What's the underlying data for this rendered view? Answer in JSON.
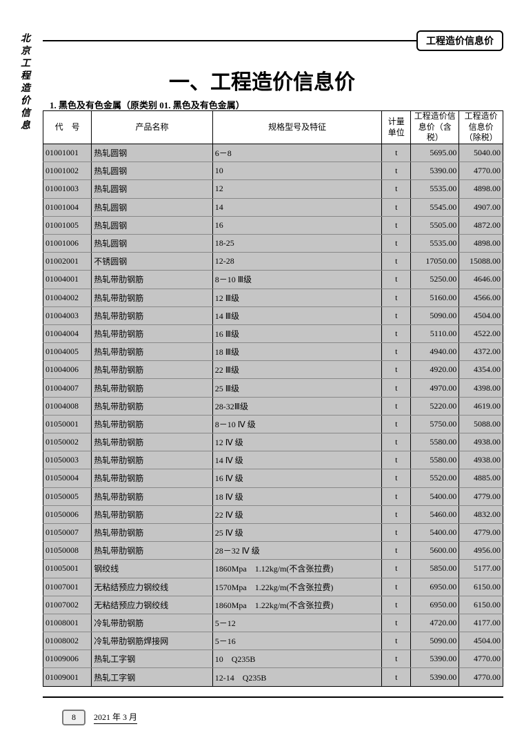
{
  "vertTitle": "北京工程造价信息",
  "headerTag": "工程造价信息价",
  "mainTitle": "一、工程造价信息价",
  "subTitle": "1. 黑色及有色金属（原类别 01. 黑色及有色金属）",
  "pageNumber": "8",
  "footerDate": "2021 年 3 月",
  "columns": {
    "code": "代　号",
    "name": "产品名称",
    "spec": "规格型号及特征",
    "unit": "计量单位",
    "p1": "工程造价信息价（含税）",
    "p2": "工程造价信息价（除税）"
  },
  "rows": [
    {
      "code": "01001001",
      "name": "热轧圆钢",
      "spec": "6－8",
      "unit": "t",
      "p1": "5695.00",
      "p2": "5040.00"
    },
    {
      "code": "01001002",
      "name": "热轧圆钢",
      "spec": "10",
      "unit": "t",
      "p1": "5390.00",
      "p2": "4770.00"
    },
    {
      "code": "01001003",
      "name": "热轧圆钢",
      "spec": "12",
      "unit": "t",
      "p1": "5535.00",
      "p2": "4898.00"
    },
    {
      "code": "01001004",
      "name": "热轧圆钢",
      "spec": "14",
      "unit": "t",
      "p1": "5545.00",
      "p2": "4907.00"
    },
    {
      "code": "01001005",
      "name": "热轧圆钢",
      "spec": "16",
      "unit": "t",
      "p1": "5505.00",
      "p2": "4872.00"
    },
    {
      "code": "01001006",
      "name": "热轧圆钢",
      "spec": "18-25",
      "unit": "t",
      "p1": "5535.00",
      "p2": "4898.00"
    },
    {
      "code": "01002001",
      "name": "不锈圆钢",
      "spec": "12-28",
      "unit": "t",
      "p1": "17050.00",
      "p2": "15088.00"
    },
    {
      "code": "01004001",
      "name": "热轧带肋钢筋",
      "spec": "8－10 Ⅲ级",
      "unit": "t",
      "p1": "5250.00",
      "p2": "4646.00"
    },
    {
      "code": "01004002",
      "name": "热轧带肋钢筋",
      "spec": "12 Ⅲ级",
      "unit": "t",
      "p1": "5160.00",
      "p2": "4566.00"
    },
    {
      "code": "01004003",
      "name": "热轧带肋钢筋",
      "spec": "14 Ⅲ级",
      "unit": "t",
      "p1": "5090.00",
      "p2": "4504.00"
    },
    {
      "code": "01004004",
      "name": "热轧带肋钢筋",
      "spec": "16 Ⅲ级",
      "unit": "t",
      "p1": "5110.00",
      "p2": "4522.00"
    },
    {
      "code": "01004005",
      "name": "热轧带肋钢筋",
      "spec": "18 Ⅲ级",
      "unit": "t",
      "p1": "4940.00",
      "p2": "4372.00"
    },
    {
      "code": "01004006",
      "name": "热轧带肋钢筋",
      "spec": "22 Ⅲ级",
      "unit": "t",
      "p1": "4920.00",
      "p2": "4354.00"
    },
    {
      "code": "01004007",
      "name": "热轧带肋钢筋",
      "spec": "25 Ⅲ级",
      "unit": "t",
      "p1": "4970.00",
      "p2": "4398.00"
    },
    {
      "code": "01004008",
      "name": "热轧带肋钢筋",
      "spec": "28-32Ⅲ级",
      "unit": "t",
      "p1": "5220.00",
      "p2": "4619.00"
    },
    {
      "code": "01050001",
      "name": "热轧带肋钢筋",
      "spec": "8－10 Ⅳ 级",
      "unit": "t",
      "p1": "5750.00",
      "p2": "5088.00"
    },
    {
      "code": "01050002",
      "name": "热轧带肋钢筋",
      "spec": "12 Ⅳ 级",
      "unit": "t",
      "p1": "5580.00",
      "p2": "4938.00"
    },
    {
      "code": "01050003",
      "name": "热轧带肋钢筋",
      "spec": "14 Ⅳ 级",
      "unit": "t",
      "p1": "5580.00",
      "p2": "4938.00"
    },
    {
      "code": "01050004",
      "name": "热轧带肋钢筋",
      "spec": "16 Ⅳ 级",
      "unit": "t",
      "p1": "5520.00",
      "p2": "4885.00"
    },
    {
      "code": "01050005",
      "name": "热轧带肋钢筋",
      "spec": "18 Ⅳ 级",
      "unit": "t",
      "p1": "5400.00",
      "p2": "4779.00"
    },
    {
      "code": "01050006",
      "name": "热轧带肋钢筋",
      "spec": "22 Ⅳ 级",
      "unit": "t",
      "p1": "5460.00",
      "p2": "4832.00"
    },
    {
      "code": "01050007",
      "name": "热轧带肋钢筋",
      "spec": "25 Ⅳ 级",
      "unit": "t",
      "p1": "5400.00",
      "p2": "4779.00"
    },
    {
      "code": "01050008",
      "name": "热轧带肋钢筋",
      "spec": "28－32 Ⅳ 级",
      "unit": "t",
      "p1": "5600.00",
      "p2": "4956.00"
    },
    {
      "code": "01005001",
      "name": "钢绞线",
      "spec": "1860Mpa　1.12kg/m(不含张拉费)",
      "unit": "t",
      "p1": "5850.00",
      "p2": "5177.00"
    },
    {
      "code": "01007001",
      "name": "无粘结预应力钢绞线",
      "spec": "1570Mpa　1.22kg/m(不含张拉费)",
      "unit": "t",
      "p1": "6950.00",
      "p2": "6150.00"
    },
    {
      "code": "01007002",
      "name": "无粘结预应力钢绞线",
      "spec": "1860Mpa　1.22kg/m(不含张拉费)",
      "unit": "t",
      "p1": "6950.00",
      "p2": "6150.00"
    },
    {
      "code": "01008001",
      "name": "冷轧带肋钢筋",
      "spec": "5－12",
      "unit": "t",
      "p1": "4720.00",
      "p2": "4177.00"
    },
    {
      "code": "01008002",
      "name": "冷轧带肋钢筋焊接网",
      "spec": "5－16",
      "unit": "t",
      "p1": "5090.00",
      "p2": "4504.00"
    },
    {
      "code": "01009006",
      "name": "热轧工字钢",
      "spec": "10　Q235B",
      "unit": "t",
      "p1": "5390.00",
      "p2": "4770.00"
    },
    {
      "code": "01009001",
      "name": "热轧工字钢",
      "spec": "12-14　Q235B",
      "unit": "t",
      "p1": "5390.00",
      "p2": "4770.00"
    }
  ]
}
